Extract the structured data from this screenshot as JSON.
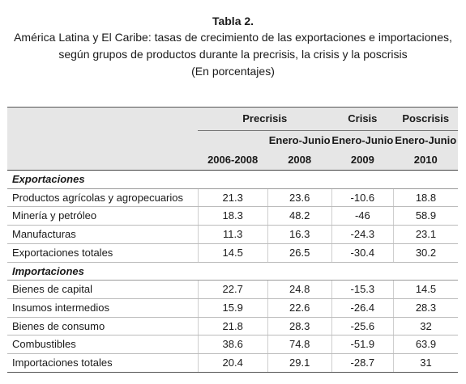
{
  "caption": {
    "title": "Tabla 2.",
    "line1": "América Latina y El Caribe: tasas de crecimiento de las exportaciones e importaciones,",
    "line2": "según grupos de productos durante la precrisis, la crisis y la poscrisis",
    "line3": "(En porcentajes)"
  },
  "headers": {
    "precrisis": "Precrisis",
    "crisis": "Crisis",
    "poscrisis": "Poscrisis",
    "enero_junio_1": "Enero-Junio",
    "enero_junio_2": "Enero-Junio",
    "enero_junio_3": "Enero-Junio",
    "y1": "2006-2008",
    "y2": "2008",
    "y3": "2009",
    "y4": "2010"
  },
  "exportaciones": {
    "label": "Exportaciones",
    "rows": [
      {
        "name": "Productos agrícolas y agropecuarios",
        "v": [
          "21.3",
          "23.6",
          "-10.6",
          "18.8"
        ]
      },
      {
        "name": "Minería y petróleo",
        "v": [
          "18.3",
          "48.2",
          "-46",
          "58.9"
        ]
      },
      {
        "name": "Manufacturas",
        "v": [
          "11.3",
          "16.3",
          "-24.3",
          "23.1"
        ]
      },
      {
        "name": "Exportaciones totales",
        "v": [
          "14.5",
          "26.5",
          "-30.4",
          "30.2"
        ]
      }
    ]
  },
  "importaciones": {
    "label": "Importaciones",
    "rows": [
      {
        "name": "Bienes de capital",
        "v": [
          "22.7",
          "24.8",
          "-15.3",
          "14.5"
        ]
      },
      {
        "name": "Insumos intermedios",
        "v": [
          "15.9",
          "22.6",
          "-26.4",
          "28.3"
        ]
      },
      {
        "name": "Bienes de consumo",
        "v": [
          "21.8",
          "28.3",
          "-25.6",
          "32"
        ]
      },
      {
        "name": "Combustibles",
        "v": [
          "38.6",
          "74.8",
          "-51.9",
          "63.9"
        ]
      },
      {
        "name": "Importaciones totales",
        "v": [
          "20.4",
          "29.1",
          "-28.7",
          "31"
        ]
      }
    ]
  }
}
